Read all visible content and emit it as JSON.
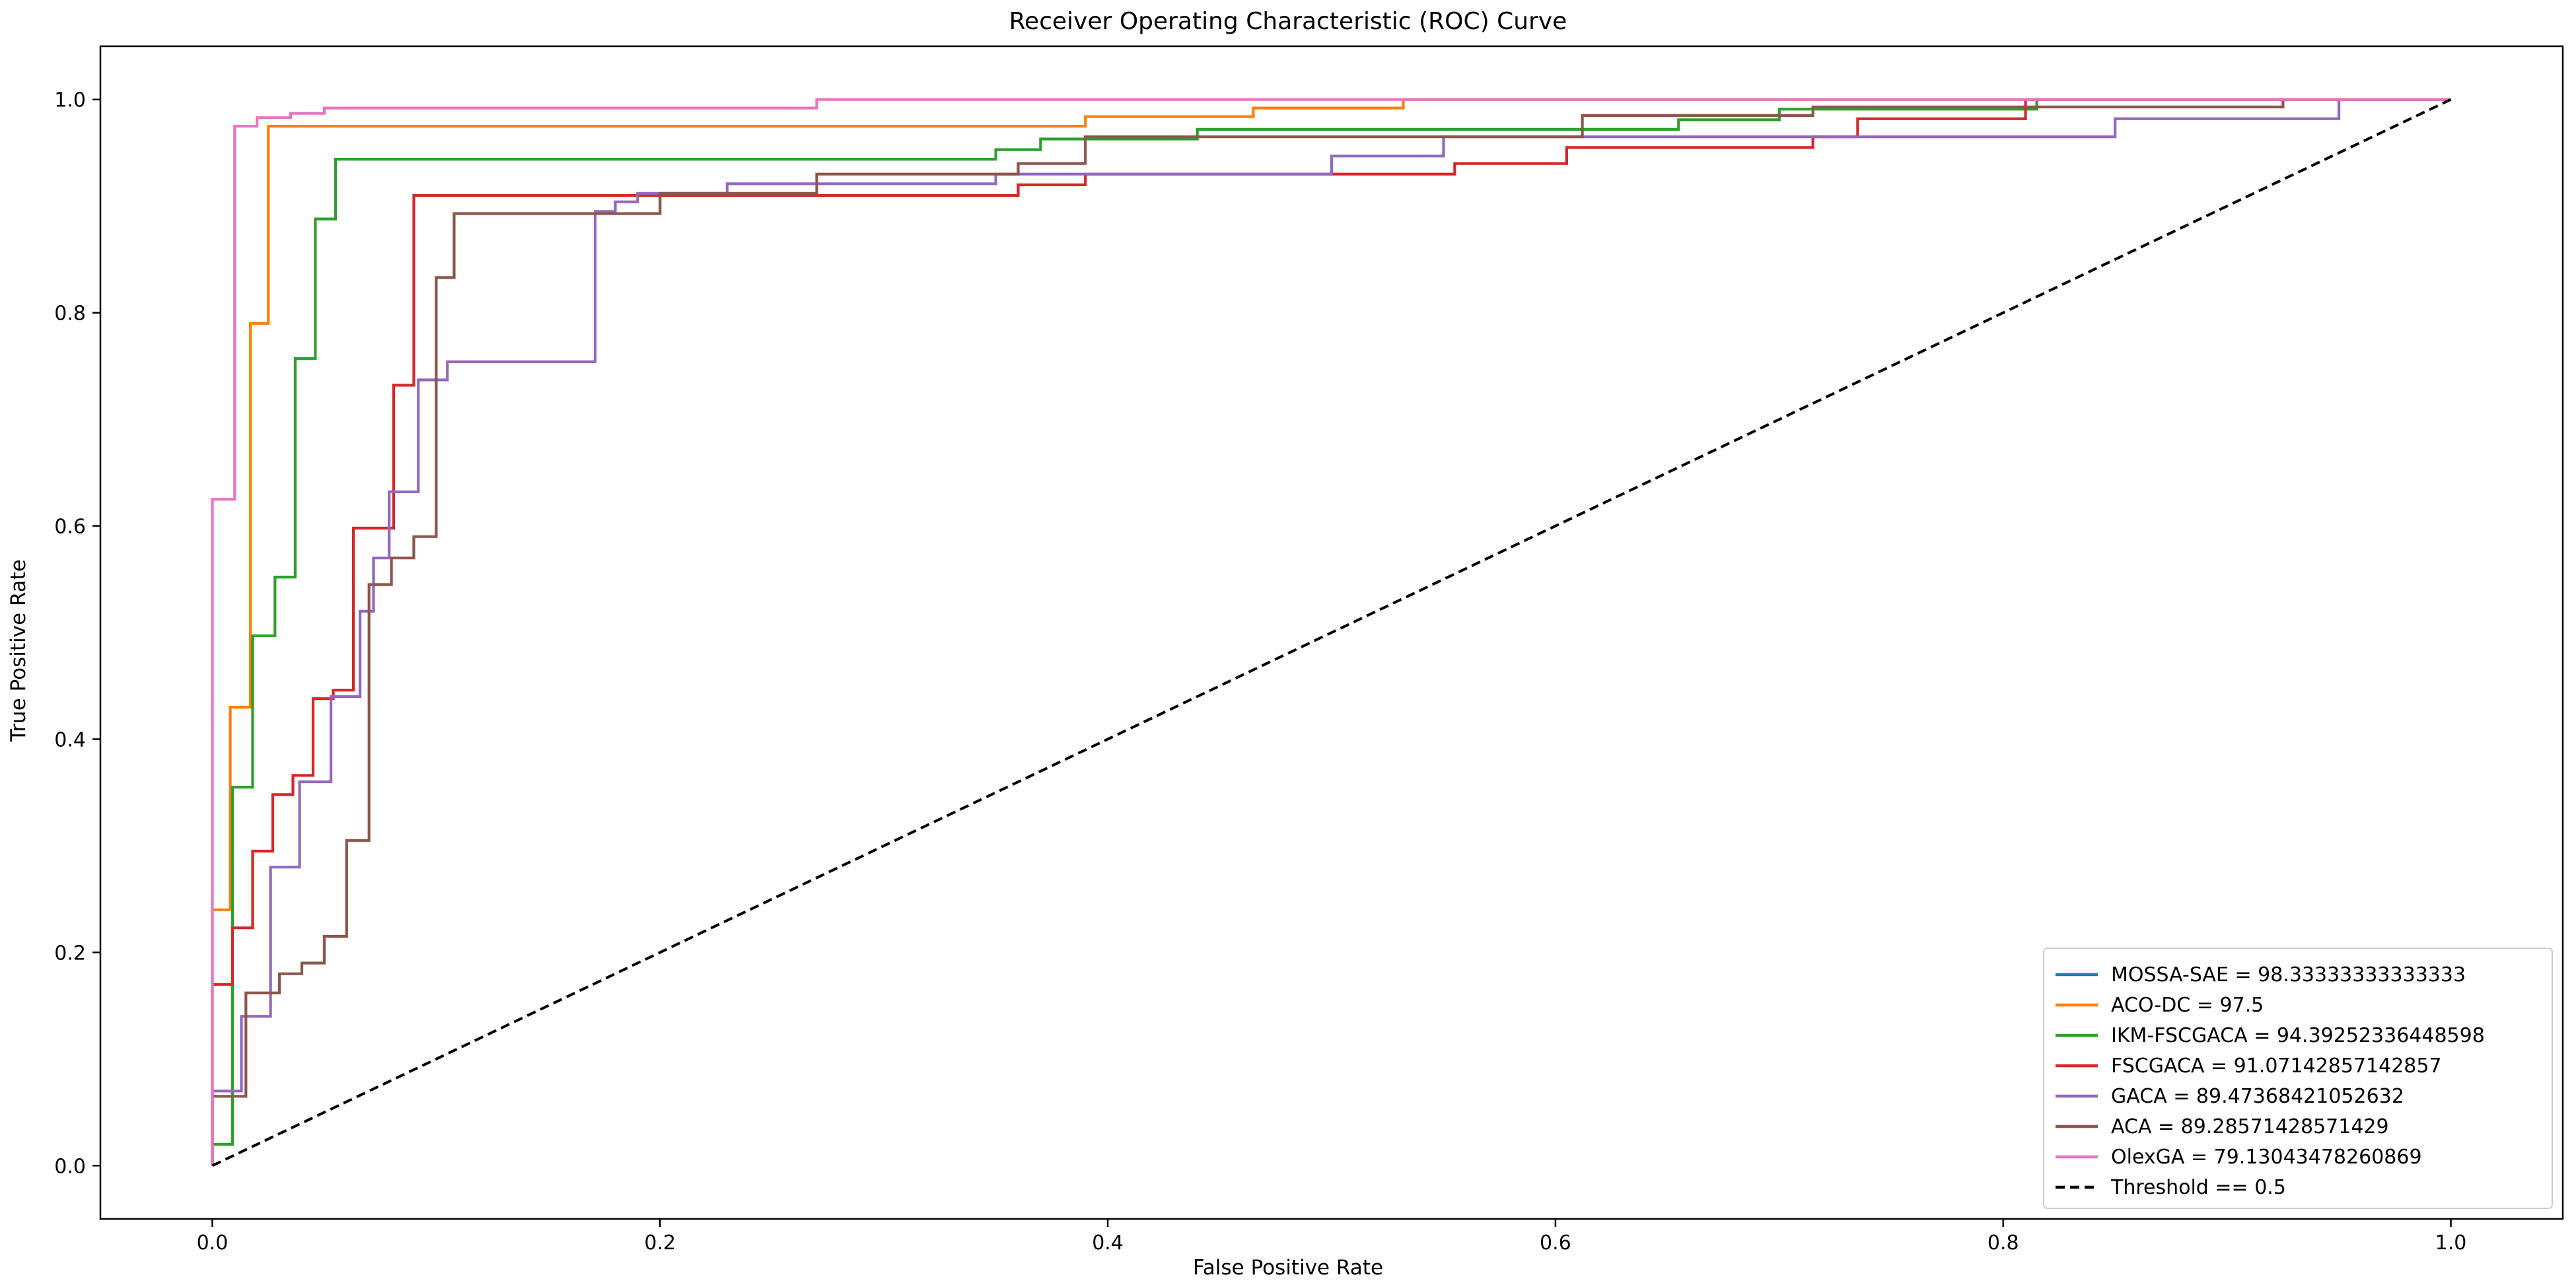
{
  "chart_data": {
    "type": "line",
    "title": "Receiver Operating Characteristic (ROC) Curve",
    "xlabel": "False Positive Rate",
    "ylabel": "True Positive Rate",
    "xlim": [
      -0.05,
      1.05
    ],
    "ylim": [
      -0.05,
      1.05
    ],
    "xticks": [
      "0.0",
      "0.2",
      "0.4",
      "0.6",
      "0.8",
      "1.0"
    ],
    "yticks": [
      "0.0",
      "0.2",
      "0.4",
      "0.6",
      "0.8",
      "1.0"
    ],
    "grid": false,
    "legend_position": "lower-right",
    "series": [
      {
        "name": "MOSSA-SAE = 98.33333333333333",
        "color": "#1f77b4",
        "style": "solid",
        "x": [],
        "y": []
      },
      {
        "name": "ACO-DC = 97.5",
        "color": "#ff7f0e",
        "style": "solid",
        "x": [
          0,
          0,
          0.008,
          0.008,
          0.017,
          0.017,
          0.025,
          0.025,
          0.39,
          0.39,
          0.465,
          0.465,
          0.532,
          0.532,
          1
        ],
        "y": [
          0,
          0.24,
          0.24,
          0.43,
          0.43,
          0.79,
          0.79,
          0.975,
          0.975,
          0.984,
          0.984,
          0.992,
          0.992,
          1,
          1
        ]
      },
      {
        "name": "IKM-FSCGACA = 94.39252336448598",
        "color": "#2ca02c",
        "style": "solid",
        "x": [
          0,
          0,
          0.009,
          0.009,
          0.018,
          0.018,
          0.028,
          0.028,
          0.037,
          0.037,
          0.046,
          0.046,
          0.055,
          0.055,
          0.35,
          0.35,
          0.37,
          0.37,
          0.44,
          0.44,
          0.48,
          0.48,
          0.655,
          0.655,
          0.7,
          0.7,
          0.815,
          0.815,
          1
        ],
        "y": [
          0,
          0.02,
          0.02,
          0.355,
          0.355,
          0.497,
          0.497,
          0.552,
          0.552,
          0.757,
          0.757,
          0.888,
          0.888,
          0.944,
          0.944,
          0.953,
          0.953,
          0.963,
          0.963,
          0.972,
          0.972,
          0.972,
          0.972,
          0.981,
          0.981,
          0.991,
          0.991,
          1,
          1
        ]
      },
      {
        "name": "FSCGACA = 91.07142857142857",
        "color": "#d62728",
        "style": "solid",
        "x": [
          0,
          0,
          0.009,
          0.009,
          0.018,
          0.018,
          0.027,
          0.027,
          0.036,
          0.036,
          0.045,
          0.045,
          0.054,
          0.054,
          0.063,
          0.063,
          0.072,
          0.072,
          0.081,
          0.081,
          0.09,
          0.09,
          0.36,
          0.36,
          0.39,
          0.39,
          0.555,
          0.555,
          0.605,
          0.605,
          0.715,
          0.715,
          0.735,
          0.735,
          0.81,
          0.81,
          1
        ],
        "y": [
          0,
          0.17,
          0.17,
          0.223,
          0.223,
          0.295,
          0.295,
          0.348,
          0.348,
          0.366,
          0.366,
          0.438,
          0.438,
          0.446,
          0.446,
          0.598,
          0.598,
          0.598,
          0.598,
          0.732,
          0.732,
          0.91,
          0.91,
          0.92,
          0.92,
          0.93,
          0.93,
          0.94,
          0.94,
          0.955,
          0.955,
          0.965,
          0.965,
          0.982,
          0.982,
          1,
          1
        ]
      },
      {
        "name": "GACA = 89.47368421052632",
        "color": "#9467bd",
        "style": "solid",
        "x": [
          0,
          0,
          0.013,
          0.013,
          0.026,
          0.026,
          0.039,
          0.039,
          0.053,
          0.053,
          0.066,
          0.066,
          0.072,
          0.072,
          0.079,
          0.079,
          0.092,
          0.092,
          0.105,
          0.105,
          0.171,
          0.171,
          0.18,
          0.18,
          0.19,
          0.19,
          0.23,
          0.23,
          0.35,
          0.35,
          0.5,
          0.5,
          0.55,
          0.55,
          0.85,
          0.85,
          0.95,
          0.95,
          1
        ],
        "y": [
          0,
          0.07,
          0.07,
          0.14,
          0.14,
          0.28,
          0.28,
          0.36,
          0.36,
          0.44,
          0.44,
          0.52,
          0.52,
          0.57,
          0.57,
          0.632,
          0.632,
          0.737,
          0.737,
          0.754,
          0.754,
          0.895,
          0.895,
          0.904,
          0.904,
          0.912,
          0.912,
          0.921,
          0.921,
          0.93,
          0.93,
          0.947,
          0.947,
          0.965,
          0.965,
          0.982,
          0.982,
          1,
          1
        ]
      },
      {
        "name": "ACA = 89.28571428571429",
        "color": "#8c564b",
        "style": "solid",
        "x": [
          0,
          0,
          0.015,
          0.015,
          0.03,
          0.03,
          0.04,
          0.04,
          0.05,
          0.05,
          0.06,
          0.06,
          0.07,
          0.07,
          0.08,
          0.08,
          0.09,
          0.09,
          0.1,
          0.1,
          0.108,
          0.108,
          0.2,
          0.2,
          0.27,
          0.27,
          0.36,
          0.36,
          0.39,
          0.39,
          0.612,
          0.612,
          0.715,
          0.715,
          0.925,
          0.925
        ],
        "y": [
          0,
          0.065,
          0.065,
          0.162,
          0.162,
          0.18,
          0.18,
          0.19,
          0.19,
          0.215,
          0.215,
          0.305,
          0.305,
          0.545,
          0.545,
          0.57,
          0.57,
          0.59,
          0.59,
          0.833,
          0.833,
          0.893,
          0.893,
          0.912,
          0.912,
          0.93,
          0.93,
          0.94,
          0.94,
          0.965,
          0.965,
          0.985,
          0.985,
          0.993,
          0.993,
          1
        ]
      },
      {
        "name": "OlexGA = 79.13043478260869",
        "color": "#e377c2",
        "style": "solid",
        "x": [
          0,
          0,
          0.01,
          0.01,
          0.02,
          0.02,
          0.035,
          0.035,
          0.05,
          0.05,
          0.27,
          0.27,
          1
        ],
        "y": [
          0,
          0.625,
          0.625,
          0.975,
          0.975,
          0.983,
          0.983,
          0.987,
          0.987,
          0.992,
          0.992,
          1,
          1
        ]
      },
      {
        "name": "Threshold == 0.5",
        "color": "#000000",
        "style": "dashed",
        "x": [
          0,
          1
        ],
        "y": [
          0,
          1
        ]
      }
    ]
  }
}
